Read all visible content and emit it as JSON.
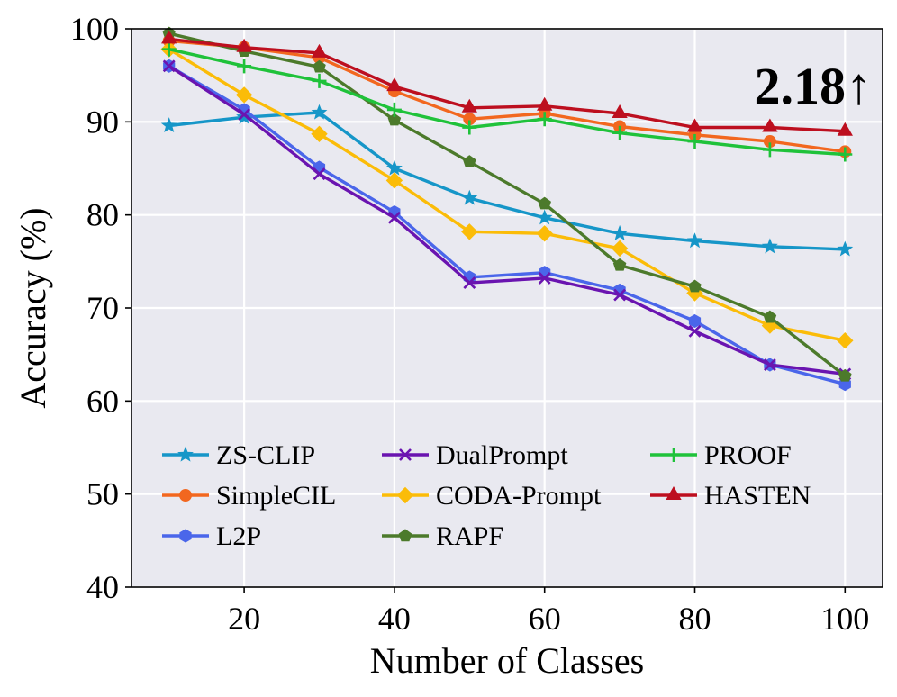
{
  "chart_data": {
    "type": "line",
    "title": "",
    "xlabel": "Number of Classes",
    "ylabel": "Accuracy (%)",
    "xlim": [
      5,
      105
    ],
    "ylim": [
      40,
      100
    ],
    "xticks": [
      20,
      40,
      60,
      80,
      100
    ],
    "yticks": [
      40,
      50,
      60,
      70,
      80,
      90,
      100
    ],
    "grid": true,
    "legend_position": "lower-left",
    "annotation": "2.18↑",
    "x": [
      10,
      20,
      30,
      40,
      50,
      60,
      70,
      80,
      90,
      100
    ],
    "series": [
      {
        "name": "ZS-CLIP",
        "color": "#1696c8",
        "marker": "star",
        "values": [
          89.6,
          90.5,
          91.0,
          85.0,
          81.8,
          79.7,
          78.0,
          77.2,
          76.6,
          76.3
        ]
      },
      {
        "name": "SimpleCIL",
        "color": "#f2671f",
        "marker": "circle",
        "values": [
          98.7,
          98.0,
          96.9,
          93.3,
          90.3,
          90.9,
          89.5,
          88.6,
          87.9,
          86.8
        ]
      },
      {
        "name": "L2P",
        "color": "#4a66ea",
        "marker": "hexagon",
        "values": [
          96.0,
          91.3,
          85.1,
          80.3,
          73.3,
          73.8,
          71.9,
          68.6,
          63.9,
          61.8
        ]
      },
      {
        "name": "DualPrompt",
        "color": "#6a14b0",
        "marker": "x",
        "values": [
          96.0,
          90.8,
          84.4,
          79.7,
          72.7,
          73.2,
          71.4,
          67.5,
          63.9,
          62.9
        ]
      },
      {
        "name": "CODA-Prompt",
        "color": "#fbbc08",
        "marker": "diamond",
        "values": [
          97.8,
          92.9,
          88.7,
          83.7,
          78.2,
          78.0,
          76.4,
          71.6,
          68.1,
          66.5
        ]
      },
      {
        "name": "RAPF",
        "color": "#4c7a2b",
        "marker": "pentagon",
        "values": [
          99.5,
          97.6,
          95.9,
          90.2,
          85.7,
          81.2,
          74.6,
          72.3,
          69.0,
          62.7
        ]
      },
      {
        "name": "PROOF",
        "color": "#1fc23a",
        "marker": "plus",
        "values": [
          97.8,
          96.0,
          94.4,
          91.3,
          89.4,
          90.3,
          88.8,
          87.9,
          87.0,
          86.5
        ]
      },
      {
        "name": "HASTEN",
        "color": "#bd0f1f",
        "marker": "triangle",
        "values": [
          98.9,
          98.0,
          97.4,
          93.8,
          91.5,
          91.7,
          90.9,
          89.4,
          89.4,
          89.0
        ]
      }
    ]
  }
}
